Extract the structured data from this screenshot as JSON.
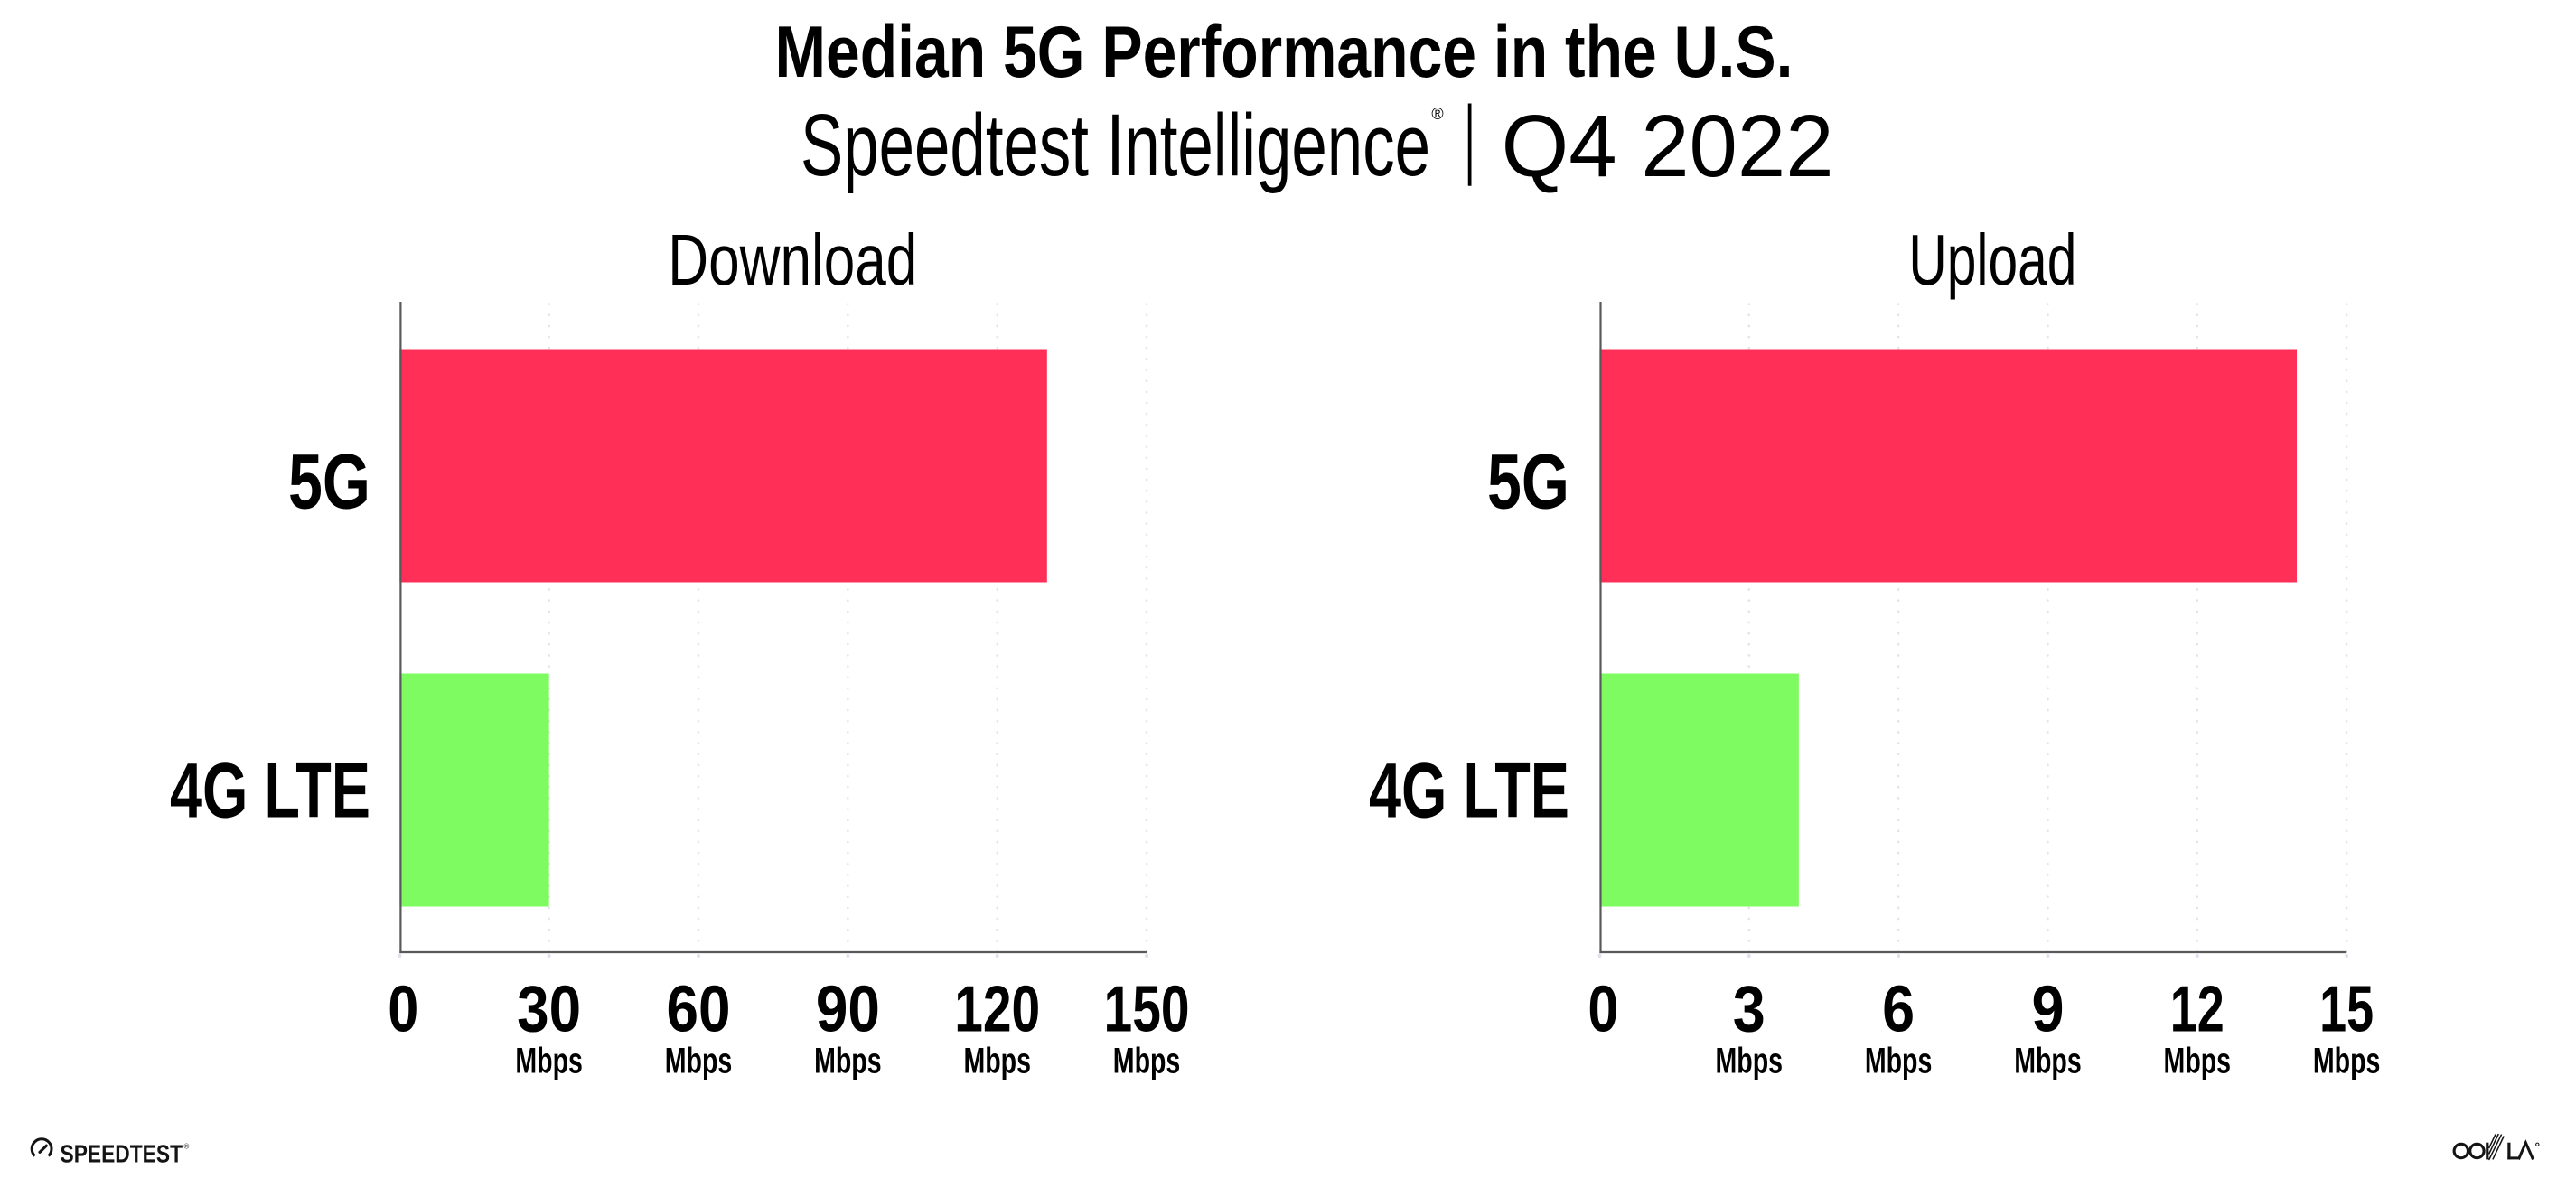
{
  "title": "Median 5G Performance in the U.S.",
  "subtitle": {
    "brand": "Speedtest Intelligence",
    "registered_mark": "®",
    "separator": "|",
    "period": "Q4 2022"
  },
  "chart_data": {
    "type": "bar",
    "orientation": "horizontal",
    "title": "Median 5G Performance in the U.S.",
    "subtitle": "Speedtest Intelligence® | Q4 2022",
    "unit": "Mbps",
    "categories": [
      "5G",
      "4G LTE"
    ],
    "series_colors": {
      "5G": "#FF2F57",
      "4G LTE": "#7FFB62"
    },
    "grid": "vertical-dotted",
    "legend": "none",
    "panels": [
      {
        "title": "Download",
        "xlim": [
          0,
          150
        ],
        "ticks": [
          0,
          30,
          60,
          90,
          120,
          150
        ],
        "tick_labels": [
          "0",
          "30",
          "60",
          "90",
          "120",
          "150"
        ],
        "values": {
          "5G": 130,
          "4G LTE": 30
        }
      },
      {
        "title": "Upload",
        "xlim": [
          0,
          15
        ],
        "ticks": [
          0,
          3,
          6,
          9,
          12,
          15
        ],
        "tick_labels": [
          "0",
          "3",
          "6",
          "9",
          "12",
          "15"
        ],
        "values": {
          "5G": 14,
          "4G LTE": 4
        }
      }
    ]
  },
  "footer": {
    "speedtest_wordmark": "SPEEDTEST",
    "speedtest_registered_mark": "®",
    "ookla_wordmark": "OOKLA"
  }
}
